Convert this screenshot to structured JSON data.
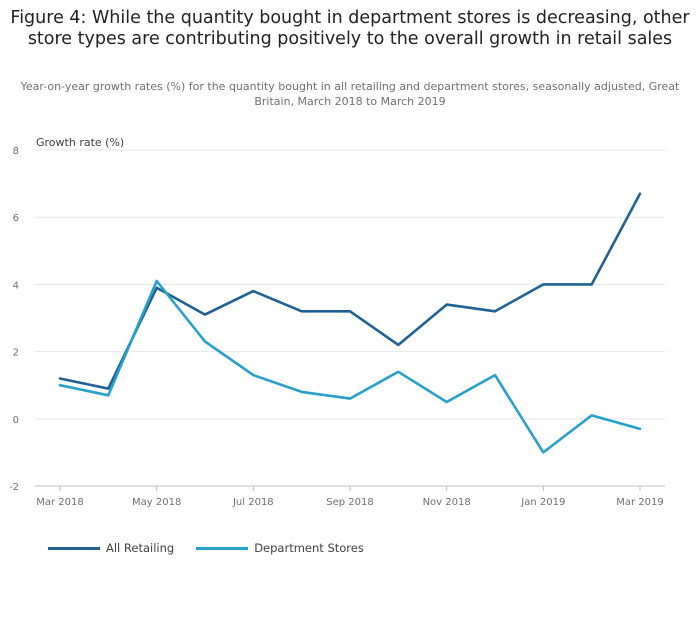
{
  "chart_data": {
    "type": "line",
    "title": "Figure 4: While the quantity bought in department stores is decreasing, other store types are contributing positively to the overall growth in retail sales",
    "subtitle": "Year-on-year growth rates (%) for the quantity bought in all retailing and department stores, seasonally adjusted, Great Britain, March 2018 to March 2019",
    "ylabel": "Growth rate (%)",
    "xlabel": "",
    "ylim": [
      -2,
      8
    ],
    "yticks": [
      -2,
      0,
      2,
      4,
      6,
      8
    ],
    "x": [
      "Mar 2018",
      "Apr 2018",
      "May 2018",
      "Jun 2018",
      "Jul 2018",
      "Aug 2018",
      "Sep 2018",
      "Oct 2018",
      "Nov 2018",
      "Dec 2018",
      "Jan 2019",
      "Feb 2019",
      "Mar 2019"
    ],
    "xtick_labels": [
      "Mar 2018",
      "May 2018",
      "Jul 2018",
      "Sep 2018",
      "Nov 2018",
      "Jan 2019",
      "Mar 2019"
    ],
    "grid": true,
    "legend_position": "bottom-left",
    "series": [
      {
        "name": "All Retailing",
        "color": "#206095",
        "values": [
          1.2,
          0.9,
          3.9,
          3.1,
          3.8,
          3.2,
          3.2,
          2.2,
          3.4,
          3.2,
          4.0,
          4.0,
          6.7
        ]
      },
      {
        "name": "Department Stores",
        "color": "#27a0cc",
        "values": [
          1.0,
          0.7,
          4.1,
          2.3,
          1.3,
          0.8,
          0.6,
          1.4,
          0.5,
          1.3,
          -1.0,
          0.1,
          -0.3
        ]
      }
    ]
  }
}
